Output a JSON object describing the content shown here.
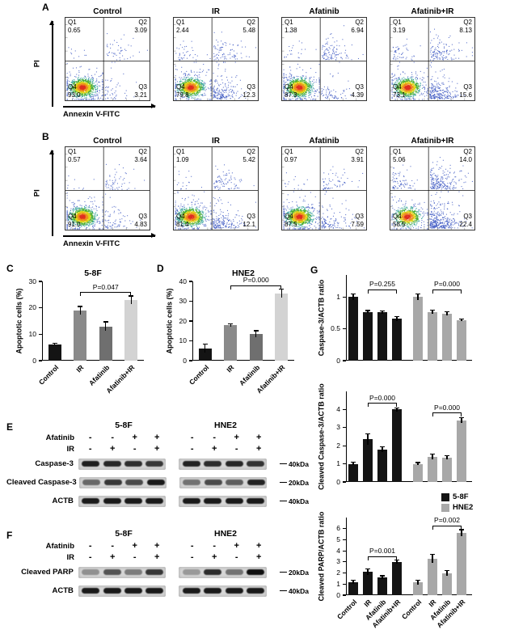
{
  "panel_letters": {
    "a": "A",
    "b": "B",
    "c": "C",
    "d": "D",
    "e": "E",
    "f": "F",
    "g": "G"
  },
  "flow": {
    "y_axis": "PI",
    "x_axis": "Annexin V-FITC",
    "quadrant_labels": [
      "Q1",
      "Q2",
      "Q3",
      "Q4"
    ],
    "rows": [
      {
        "panel": "A",
        "plots": [
          {
            "title": "Control",
            "q1": "0.65",
            "q2": "3.09",
            "q3": "3.21",
            "q4": "93.0"
          },
          {
            "title": "IR",
            "q1": "2.44",
            "q2": "5.48",
            "q3": "12.3",
            "q4": "79.8"
          },
          {
            "title": "Afatinib",
            "q1": "1.38",
            "q2": "6.94",
            "q3": "4.39",
            "q4": "87.3"
          },
          {
            "title": "Afatinib+IR",
            "q1": "3.19",
            "q2": "8.13",
            "q3": "15.6",
            "q4": "73.1"
          }
        ]
      },
      {
        "panel": "B",
        "plots": [
          {
            "title": "Control",
            "q1": "0.57",
            "q2": "3.64",
            "q3": "4.83",
            "q4": "91.0"
          },
          {
            "title": "IR",
            "q1": "1.09",
            "q2": "5.42",
            "q3": "12.1",
            "q4": "81.4"
          },
          {
            "title": "Afatinib",
            "q1": "0.97",
            "q2": "3.91",
            "q3": "7.59",
            "q4": "87.5"
          },
          {
            "title": "Afatinib+IR",
            "q1": "5.06",
            "q2": "14.0",
            "q3": "22.4",
            "q4": "58.5"
          }
        ]
      }
    ]
  },
  "chart_data": [
    {
      "id": "C",
      "type": "bar",
      "title": "5-8F",
      "ylabel": "Apoptotic cells (%)",
      "categories": [
        "Control",
        "IR",
        "Afatinib",
        "Afatinib+IR"
      ],
      "values": [
        6.2,
        19,
        13,
        23
      ],
      "errors": [
        0.5,
        1.5,
        1.7,
        1.5
      ],
      "ylim": [
        0,
        30
      ],
      "yticks": [
        0,
        10,
        20,
        30
      ],
      "bar_colors": [
        "#141414",
        "#8a8a8a",
        "#6f6f6f",
        "#d3d3d3"
      ],
      "significance": {
        "from": 1,
        "to": 3,
        "label": "P=0.047"
      }
    },
    {
      "id": "D",
      "type": "bar",
      "title": "HNE2",
      "ylabel": "Apoptotic cells (%)",
      "categories": [
        "Control",
        "IR",
        "Afatinib",
        "Afatinib+IR"
      ],
      "values": [
        6.2,
        18,
        13.5,
        34
      ],
      "errors": [
        2.2,
        0.7,
        1.6,
        2.0
      ],
      "ylim": [
        0,
        40
      ],
      "yticks": [
        0,
        10,
        20,
        30,
        40
      ],
      "bar_colors": [
        "#141414",
        "#8a8a8a",
        "#6f6f6f",
        "#d3d3d3"
      ],
      "significance": {
        "from": 1,
        "to": 3,
        "label": "P=0.000"
      }
    },
    {
      "id": "G-top",
      "type": "grouped-bar",
      "ylabel": "Caspase-3/ACTB ratio",
      "categories": [
        "Control",
        "IR",
        "Afatinib",
        "Afatinib+IR"
      ],
      "ylim": [
        0,
        1.35
      ],
      "yticks": [
        0,
        0.5,
        1
      ],
      "groups": [
        {
          "name": "5-8F",
          "color": "#141414",
          "values": [
            1.0,
            0.77,
            0.76,
            0.66
          ],
          "errors": [
            0.05,
            0.02,
            0.02,
            0.03
          ],
          "significance": {
            "from": 1,
            "to": 3,
            "label": "P=0.255"
          }
        },
        {
          "name": "HNE2",
          "color": "#a8a8a8",
          "values": [
            1.0,
            0.77,
            0.74,
            0.64
          ],
          "errors": [
            0.05,
            0.03,
            0.03,
            0.02
          ],
          "significance": {
            "from": 1,
            "to": 3,
            "label": "P=0.000"
          }
        }
      ]
    },
    {
      "id": "G-middle",
      "type": "grouped-bar",
      "ylabel": "Cleaved Caspase-3/ACTB ratio",
      "categories": [
        "Control",
        "IR",
        "Afatinib",
        "Afatinib+IR"
      ],
      "ylim": [
        0,
        5
      ],
      "yticks": [
        0,
        1,
        2,
        3,
        4
      ],
      "groups": [
        {
          "name": "5-8F",
          "color": "#141414",
          "values": [
            1.0,
            2.35,
            1.8,
            4.0
          ],
          "errors": [
            0.08,
            0.3,
            0.15,
            0.1
          ],
          "significance": {
            "from": 1,
            "to": 3,
            "label": "P=0.000"
          }
        },
        {
          "name": "HNE2",
          "color": "#a8a8a8",
          "values": [
            1.0,
            1.4,
            1.35,
            3.4
          ],
          "errors": [
            0.07,
            0.15,
            0.1,
            0.15
          ],
          "significance": {
            "from": 1,
            "to": 3,
            "label": "P=0.000"
          }
        }
      ]
    },
    {
      "id": "G-bottom",
      "type": "grouped-bar",
      "ylabel": "Cleaved PARP/ACTB ratio",
      "categories": [
        "Control",
        "IR",
        "Afatinib",
        "Afatinib+IR"
      ],
      "ylim": [
        0,
        7
      ],
      "yticks": [
        0,
        1,
        2,
        3,
        4,
        5,
        6
      ],
      "groups": [
        {
          "name": "5-8F",
          "color": "#141414",
          "values": [
            1.2,
            2.1,
            1.6,
            3.0
          ],
          "errors": [
            0.15,
            0.25,
            0.15,
            0.15
          ],
          "significance": {
            "from": 1,
            "to": 3,
            "label": "P=0.001"
          }
        },
        {
          "name": "HNE2",
          "color": "#a8a8a8",
          "values": [
            1.15,
            3.3,
            2.0,
            5.6
          ],
          "errors": [
            0.2,
            0.4,
            0.25,
            0.3
          ],
          "significance": {
            "from": 1,
            "to": 3,
            "label": "P=0.002"
          }
        }
      ],
      "legend": {
        "entries": [
          {
            "label": "5-8F",
            "color": "#141414"
          },
          {
            "label": "HNE2",
            "color": "#a8a8a8"
          }
        ]
      }
    }
  ],
  "western": {
    "e": {
      "cell_lines": [
        "5-8F",
        "HNE2"
      ],
      "treatments": [
        {
          "label": "Afatinib",
          "signs": [
            "-",
            "-",
            "+",
            "+"
          ]
        },
        {
          "label": "IR",
          "signs": [
            "-",
            "+",
            "-",
            "+"
          ]
        }
      ],
      "bands": [
        {
          "label": "Caspase-3",
          "marker": "40kDa",
          "intensities": [
            [
              0.92,
              0.88,
              0.85,
              0.8
            ],
            [
              0.9,
              0.85,
              0.88,
              0.82
            ]
          ]
        },
        {
          "label": "Cleaved Caspase-3",
          "marker": "20kDa",
          "intensities": [
            [
              0.55,
              0.8,
              0.7,
              0.95
            ],
            [
              0.5,
              0.7,
              0.6,
              0.9
            ]
          ]
        },
        {
          "label": "ACTB",
          "marker": "40kDa",
          "intensities": [
            [
              0.95,
              0.95,
              0.95,
              0.95
            ],
            [
              0.95,
              0.95,
              0.95,
              0.95
            ]
          ]
        }
      ]
    },
    "f": {
      "cell_lines": [
        "5-8F",
        "HNE2"
      ],
      "treatments": [
        {
          "label": "Afatinib",
          "signs": [
            "-",
            "-",
            "+",
            "+"
          ]
        },
        {
          "label": "IR",
          "signs": [
            "-",
            "+",
            "-",
            "+"
          ]
        }
      ],
      "bands": [
        {
          "label": "Cleaved PARP",
          "marker": "20kDa",
          "intensities": [
            [
              0.35,
              0.65,
              0.45,
              0.8
            ],
            [
              0.3,
              0.85,
              0.5,
              1.0
            ]
          ]
        },
        {
          "label": "ACTB",
          "marker": "40kDa",
          "intensities": [
            [
              0.95,
              0.95,
              0.95,
              0.95
            ],
            [
              0.95,
              0.95,
              0.95,
              0.95
            ]
          ]
        }
      ]
    }
  }
}
